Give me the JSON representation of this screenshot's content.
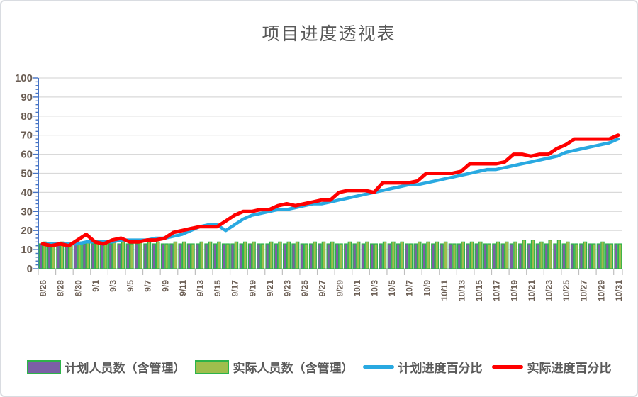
{
  "chart_data": {
    "type": "combo",
    "title": "项目进度透视表",
    "xlabel": "",
    "ylabel": "",
    "ylim": [
      0,
      100
    ],
    "y_tick_step": 10,
    "y_minor_tick_step": 2,
    "x_label_interval": 2,
    "grid": "horizontal",
    "legend_position": "bottom",
    "categories": [
      "8/26",
      "8/27",
      "8/28",
      "8/29",
      "8/30",
      "8/31",
      "9/1",
      "9/2",
      "9/3",
      "9/4",
      "9/5",
      "9/6",
      "9/7",
      "9/8",
      "9/9",
      "9/10",
      "9/11",
      "9/12",
      "9/13",
      "9/14",
      "9/15",
      "9/16",
      "9/17",
      "9/18",
      "9/19",
      "9/20",
      "9/21",
      "9/22",
      "9/23",
      "9/24",
      "9/25",
      "9/26",
      "9/27",
      "9/28",
      "9/29",
      "9/30",
      "10/1",
      "10/2",
      "10/3",
      "10/4",
      "10/5",
      "10/6",
      "10/7",
      "10/8",
      "10/9",
      "10/10",
      "10/11",
      "10/12",
      "10/13",
      "10/14",
      "10/15",
      "10/16",
      "10/17",
      "10/18",
      "10/19",
      "10/20",
      "10/21",
      "10/22",
      "10/23",
      "10/24",
      "10/25",
      "10/26",
      "10/27",
      "10/28",
      "10/29",
      "10/30",
      "10/31"
    ],
    "series": [
      {
        "name": "计划人员数（含管理）",
        "kind": "bar",
        "color": "#7b60a6",
        "border_color": "#2db34a",
        "values": [
          13,
          13,
          13,
          13,
          13,
          13,
          13,
          13,
          13,
          13,
          13,
          13,
          13,
          13,
          13,
          13,
          13,
          13,
          13,
          13,
          13,
          13,
          13,
          13,
          13,
          13,
          13,
          13,
          13,
          13,
          13,
          13,
          13,
          13,
          13,
          13,
          13,
          13,
          13,
          13,
          13,
          13,
          13,
          13,
          13,
          13,
          13,
          13,
          13,
          13,
          13,
          13,
          13,
          13,
          13,
          13,
          13,
          13,
          13,
          13,
          13,
          13,
          13,
          13,
          13,
          13,
          13
        ]
      },
      {
        "name": "实际人员数（含管理）",
        "kind": "bar",
        "color": "#9fbe4d",
        "border_color": "#2db34a",
        "values": [
          14,
          13,
          14,
          13,
          14,
          14,
          14,
          13,
          14,
          14,
          13,
          14,
          14,
          14,
          13,
          14,
          14,
          13,
          14,
          14,
          14,
          13,
          14,
          14,
          14,
          13,
          14,
          14,
          14,
          14,
          13,
          14,
          14,
          14,
          13,
          14,
          14,
          14,
          13,
          14,
          14,
          14,
          13,
          14,
          14,
          14,
          14,
          13,
          14,
          14,
          14,
          13,
          14,
          14,
          14,
          15,
          15,
          14,
          15,
          15,
          14,
          13,
          14,
          13,
          14,
          13,
          13
        ]
      },
      {
        "name": "计划进度百分比",
        "kind": "line",
        "color": "#29a9e1",
        "values": [
          13,
          13,
          13,
          13,
          13,
          14,
          14,
          14,
          14,
          15,
          15,
          15,
          15,
          16,
          16,
          17,
          18,
          20,
          22,
          23,
          23,
          20,
          23,
          26,
          28,
          29,
          30,
          31,
          31,
          32,
          33,
          34,
          34,
          35,
          36,
          37,
          38,
          39,
          40,
          41,
          42,
          43,
          44,
          44,
          45,
          46,
          47,
          48,
          49,
          50,
          51,
          52,
          52,
          53,
          54,
          55,
          56,
          57,
          58,
          59,
          61,
          62,
          63,
          64,
          65,
          66,
          68
        ]
      },
      {
        "name": "实际进度百分比",
        "kind": "line",
        "color": "#ff0000",
        "values": [
          13,
          12,
          13,
          12,
          15,
          18,
          14,
          13,
          15,
          16,
          14,
          14,
          15,
          15,
          16,
          19,
          20,
          21,
          22,
          22,
          22,
          25,
          28,
          30,
          30,
          31,
          31,
          33,
          34,
          33,
          34,
          35,
          36,
          36,
          40,
          41,
          41,
          41,
          40,
          45,
          45,
          45,
          45,
          46,
          50,
          50,
          50,
          50,
          51,
          55,
          55,
          55,
          55,
          56,
          60,
          60,
          59,
          60,
          60,
          63,
          65,
          68,
          68,
          68,
          68,
          68,
          70
        ]
      }
    ],
    "colors": {
      "y_axis": "#4472c4",
      "x_axis": "#bfbfbf",
      "gridline": "#d9d9d9",
      "tick_label": "#6b5e54",
      "title": "#595959",
      "legend_text": "#595959",
      "frame_border": "#d9dce1"
    }
  }
}
